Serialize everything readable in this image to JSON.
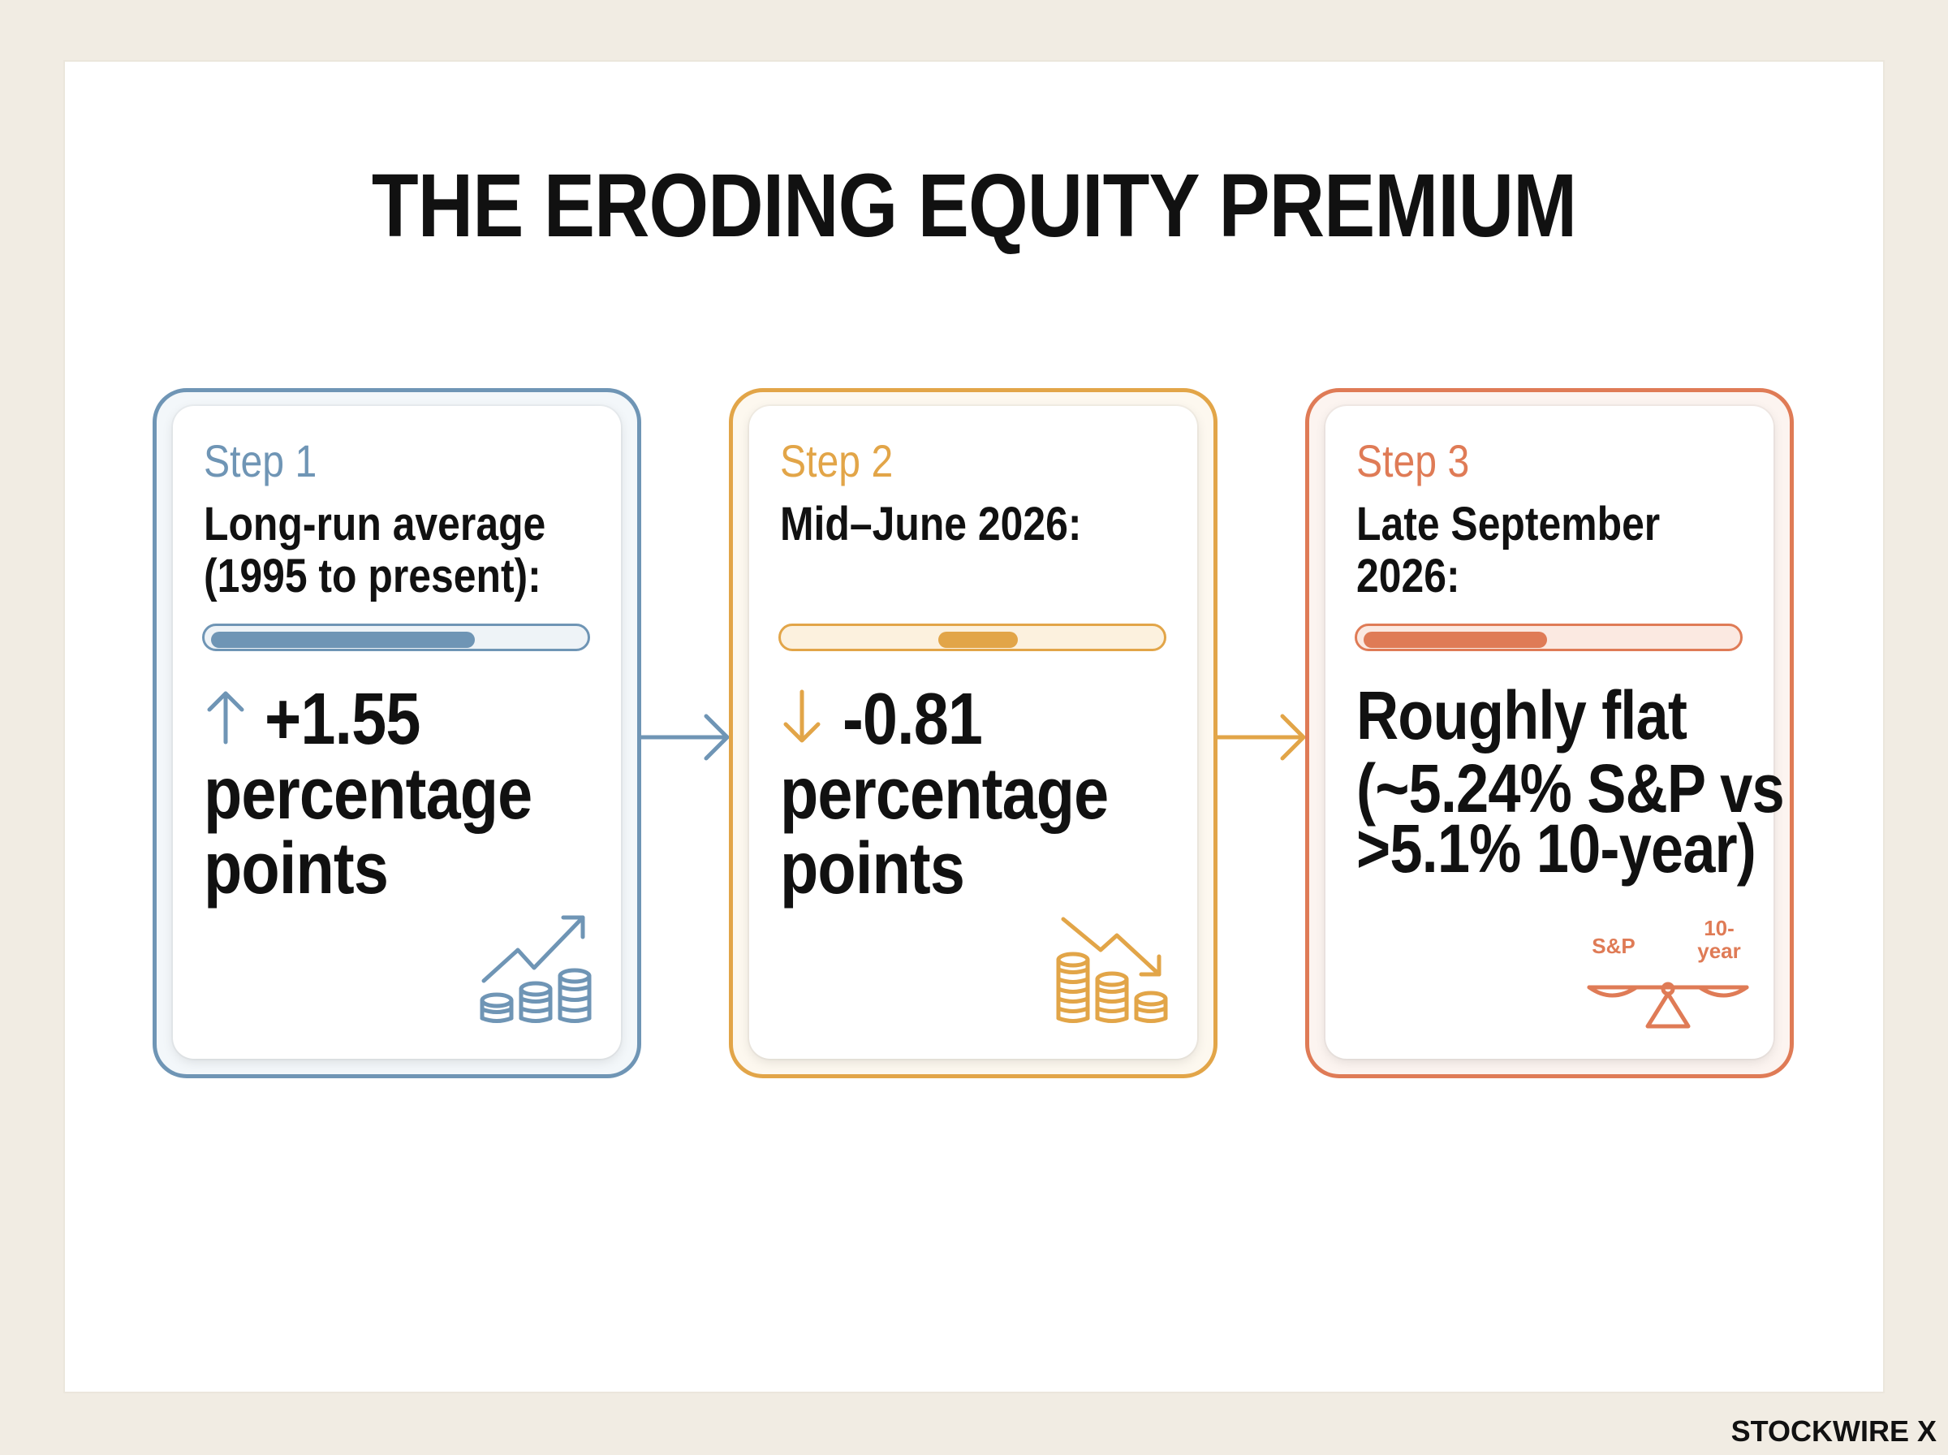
{
  "title": "THE ERODING EQUITY PREMIUM",
  "colors": {
    "step1": "#6f95b5",
    "step2": "#e2a548",
    "step3": "#df7b56"
  },
  "steps": [
    {
      "step_label": "Step 1",
      "heading_line1": "Long-run average",
      "heading_line2": "(1995 to present):",
      "direction": "up",
      "value": "+1.55",
      "unit_line1": "percentage",
      "unit_line2": "points",
      "icon": "rising-coins-icon"
    },
    {
      "step_label": "Step 2",
      "heading_line1": "Mid–June 2026:",
      "direction": "down",
      "value": "-0.81",
      "unit_line1": "percentage",
      "unit_line2": "points",
      "icon": "falling-coins-icon"
    },
    {
      "step_label": "Step 3",
      "heading_line1": "Late September",
      "heading_line2": "2026:",
      "summary_line1": "Roughly flat",
      "summary_line2": "(~5.24% S&P vs",
      "summary_line3": ">5.1% 10-year)",
      "icon": "balance-scale-icon",
      "scale_left": "S&P",
      "scale_right_line1": "10-",
      "scale_right_line2": "year"
    }
  ],
  "brand": "STOCKWIRE X"
}
